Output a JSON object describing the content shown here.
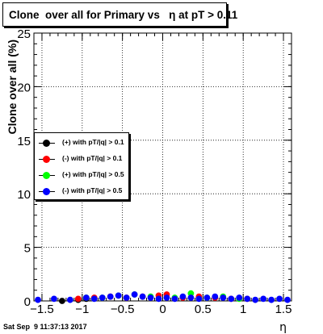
{
  "title": "Clone  over all for Primary vs   η at pT > 0.11",
  "timestamp": "Sat Sep  9 11:37:13 2017",
  "colors": {
    "black": "#000000",
    "red": "#ff0000",
    "green": "#00ff00",
    "blue": "#0000ff"
  },
  "chart_data": {
    "type": "scatter",
    "title": "Clone  over all for Primary vs   η at pT > 0.11",
    "xlabel": "η",
    "ylabel": "Clone  over all (%)",
    "xlim": [
      -1.6,
      1.6
    ],
    "ylim": [
      0,
      25
    ],
    "x_ticks": [
      "−1.5",
      "−1",
      "−0.5",
      "0",
      "0.5",
      "1",
      "1.5"
    ],
    "y_ticks": [
      "0",
      "5",
      "10",
      "15",
      "20",
      "25"
    ],
    "grid": true,
    "legend_position": "left",
    "series": [
      {
        "name": "(+) with pT/|q| > 0.1",
        "color": "#000000",
        "x": [
          -1.25,
          -1.05,
          -0.95
        ],
        "y": [
          0.0,
          0.1,
          0.2
        ]
      },
      {
        "name": "(-) with pT/|q| > 0.1",
        "color": "#ff0000",
        "x": [
          -1.05,
          -0.85,
          -0.65,
          -0.45,
          -0.25,
          -0.05,
          0.05,
          0.25,
          0.45,
          0.65,
          0.85,
          1.05
        ],
        "y": [
          0.2,
          0.3,
          0.4,
          0.3,
          0.4,
          0.5,
          0.6,
          0.3,
          0.4,
          0.3,
          0.2,
          0.2
        ]
      },
      {
        "name": "(+) with pT/|q| > 0.5",
        "color": "#00ff00",
        "x": [
          -0.95,
          -0.75,
          -0.55,
          -0.35,
          -0.15,
          0.15,
          0.35,
          0.55,
          0.75,
          0.95
        ],
        "y": [
          0.3,
          0.3,
          0.5,
          0.6,
          0.4,
          0.3,
          0.7,
          0.3,
          0.4,
          0.2
        ]
      },
      {
        "name": "(-) with pT/|q| > 0.5",
        "color": "#0000ff",
        "x": [
          -1.55,
          -1.35,
          -1.15,
          -0.95,
          -0.85,
          -0.75,
          -0.65,
          -0.55,
          -0.45,
          -0.35,
          -0.25,
          -0.15,
          -0.05,
          0.05,
          0.15,
          0.25,
          0.35,
          0.45,
          0.55,
          0.65,
          0.75,
          0.85,
          0.95,
          1.05,
          1.15,
          1.25,
          1.35,
          1.45,
          1.55
        ],
        "y": [
          0.1,
          0.2,
          0.1,
          0.3,
          0.2,
          0.3,
          0.4,
          0.5,
          0.3,
          0.6,
          0.4,
          0.3,
          0.2,
          0.3,
          0.2,
          0.4,
          0.3,
          0.2,
          0.3,
          0.4,
          0.3,
          0.2,
          0.3,
          0.2,
          0.1,
          0.2,
          0.1,
          0.2,
          0.1
        ]
      }
    ]
  }
}
